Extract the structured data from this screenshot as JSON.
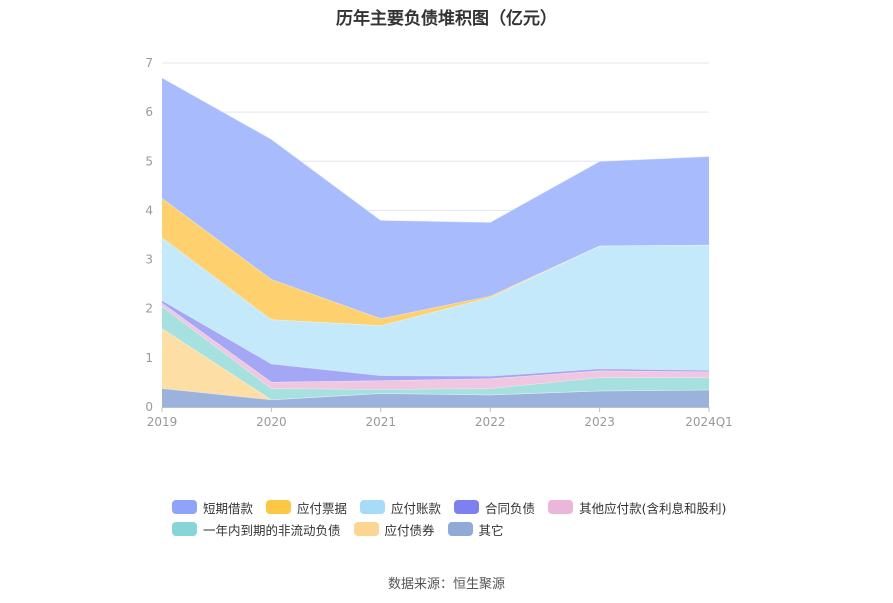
{
  "chart_data": {
    "type": "area",
    "stacked": true,
    "title": "历年主要负债堆积图（亿元）",
    "x": [
      "2019",
      "2020",
      "2021",
      "2022",
      "2023",
      "2024Q1"
    ],
    "ylim": [
      0,
      7
    ],
    "yticks": [
      "0",
      "1",
      "2",
      "3",
      "4",
      "5",
      "6",
      "7"
    ],
    "grid": true,
    "legend_position": "bottom",
    "series": [
      {
        "name": "其它",
        "color": "#9bb2dc",
        "values": [
          0.38,
          0.15,
          0.28,
          0.25,
          0.33,
          0.35
        ]
      },
      {
        "name": "应付债券",
        "color": "#fddfa6",
        "values": [
          1.22,
          0.0,
          0.0,
          0.0,
          0.0,
          0.0
        ]
      },
      {
        "name": "一年内到期的非流动负债",
        "color": "#a6e0df",
        "values": [
          0.45,
          0.23,
          0.08,
          0.13,
          0.27,
          0.25
        ]
      },
      {
        "name": "其他应付款(含利息和股利)",
        "color": "#f0c6e0",
        "values": [
          0.07,
          0.13,
          0.18,
          0.2,
          0.14,
          0.12
        ]
      },
      {
        "name": "合同负债",
        "color": "#a3a7f4",
        "values": [
          0.05,
          0.37,
          0.1,
          0.05,
          0.04,
          0.03
        ]
      },
      {
        "name": "应付账款",
        "color": "#c4e9fb",
        "values": [
          1.28,
          0.9,
          1.02,
          1.6,
          2.5,
          2.55
        ]
      },
      {
        "name": "应付票据",
        "color": "#fed06e",
        "values": [
          0.8,
          0.82,
          0.14,
          0.03,
          0.0,
          0.0
        ]
      },
      {
        "name": "短期借款",
        "color": "#a8bcfd",
        "values": [
          2.45,
          2.85,
          2.0,
          1.5,
          1.72,
          1.8
        ]
      }
    ],
    "legend": [
      {
        "name": "短期借款",
        "color": "#8fa4f8"
      },
      {
        "name": "应付票据",
        "color": "#fcc742"
      },
      {
        "name": "应付账款",
        "color": "#a6dcf8"
      },
      {
        "name": "合同负债",
        "color": "#7f80ef"
      },
      {
        "name": "其他应付款(含利息和股利)",
        "color": "#eab6d9"
      },
      {
        "name": "一年内到期的非流动负债",
        "color": "#88d5d8"
      },
      {
        "name": "应付债券",
        "color": "#fdd592"
      },
      {
        "name": "其它",
        "color": "#8faad6"
      }
    ]
  },
  "source": "数据来源：恒生聚源"
}
